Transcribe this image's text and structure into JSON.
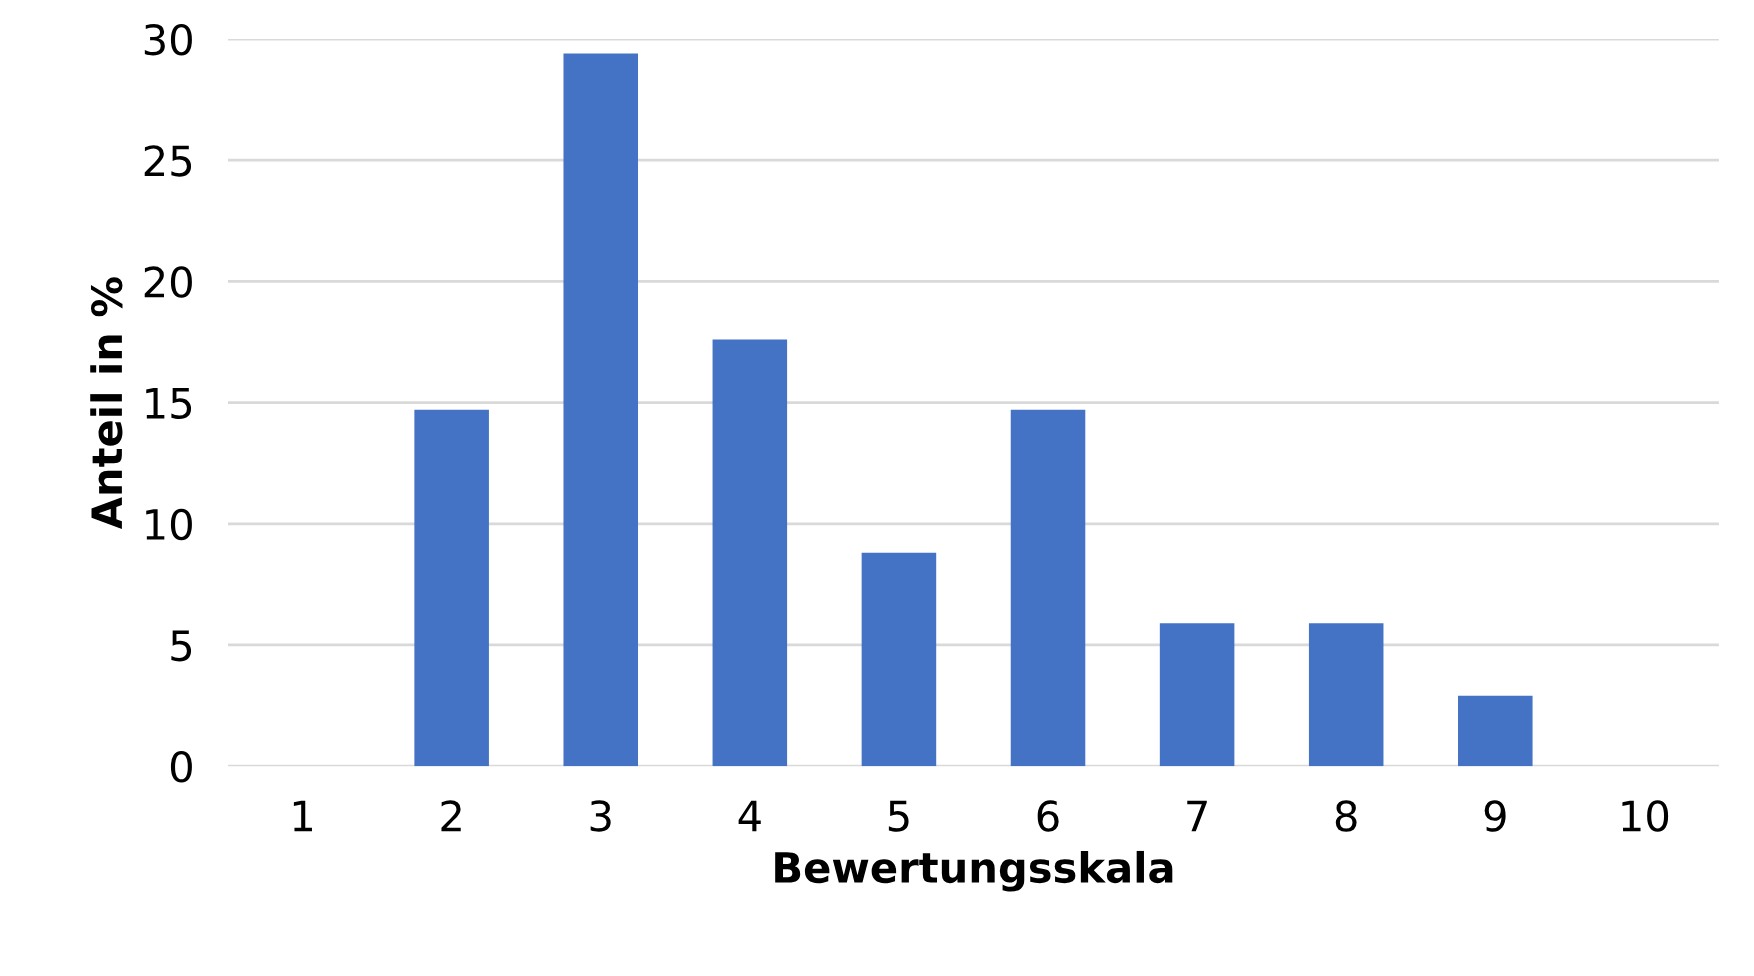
{
  "chart_data": {
    "type": "bar",
    "xlabel": "Bewertungsskala",
    "ylabel": "Anteil in %",
    "categories": [
      "1",
      "2",
      "3",
      "4",
      "5",
      "6",
      "7",
      "8",
      "9",
      "10"
    ],
    "values": [
      0,
      14.7,
      29.4,
      17.6,
      8.8,
      14.7,
      5.9,
      5.9,
      2.9,
      0
    ],
    "color": "#4472c4",
    "ylim": [
      0,
      30
    ],
    "yticks": [
      0,
      5,
      10,
      15,
      20,
      25,
      30
    ],
    "grid": "y"
  }
}
